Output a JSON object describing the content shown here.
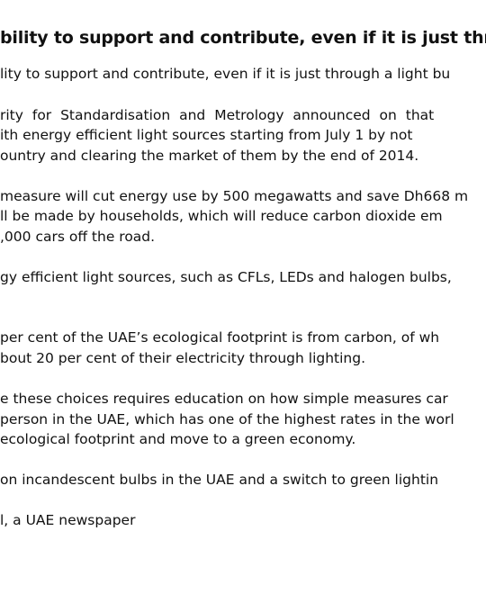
{
  "heading": "bility to support and contribute, even if it is just throu",
  "paragraphs": [
    {
      "lines": [
        "lity to support and contribute, even if it is just through a light bu"
      ]
    },
    {
      "lines": [
        "rity for Standardisation and Metrology announced on that",
        "ith energy efficient light sources starting from July 1 by not",
        "ountry and clearing the market of them by the end of 2014."
      ]
    },
    {
      "lines": [
        "measure will cut energy use by 500 megawatts and save Dh668 m",
        "ll be made by households, which will reduce carbon dioxide em",
        ",000 cars off the road."
      ]
    },
    {
      "lines": [
        "gy efficient light sources, such as CFLs, LEDs and halogen bulbs,"
      ]
    },
    {
      "lines": [
        " per cent of the UAE’s ecological footprint is from carbon, of wh",
        "bout 20 per cent of their electricity through lighting."
      ]
    },
    {
      "lines": [
        "e these choices requires education on how simple measures car",
        "person in the UAE, which has one of the highest rates in the worl",
        "ecological footprint and move to a green economy."
      ]
    },
    {
      "lines": [
        " on incandescent bulbs in the UAE and a switch to green lightin"
      ]
    },
    {
      "lines": [
        "l, a UAE newspaper"
      ]
    }
  ]
}
